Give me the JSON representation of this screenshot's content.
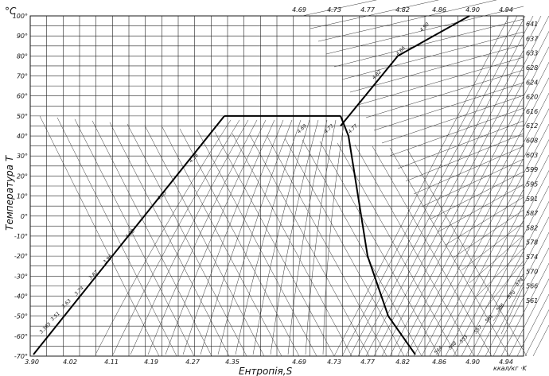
{
  "chart_data": {
    "type": "diagram",
    "xlabel": "Ентропія,S",
    "ylabel": "Температура  T",
    "yunit": "°C",
    "x_ticks_bottom": [
      "3.90",
      "4.02",
      "4.11",
      "4.19",
      "4.27",
      "4.35",
      "4.69",
      "4.73",
      "4.77",
      "4.82",
      "4.86",
      "4.90",
      "4.94"
    ],
    "x_ticks_top": [
      "4.69",
      "4.73",
      "4.77",
      "4.82",
      "4.86",
      "4.90",
      "4.94"
    ],
    "y_ticks": [
      "100°",
      "90°",
      "80°",
      "70°",
      "60°",
      "50°",
      "40°",
      "30°",
      "20°",
      "10°",
      "0°",
      "-10°",
      "-20°",
      "-30°",
      "-40°",
      "-50°",
      "-60°",
      "-70°"
    ],
    "right_ticks": [
      "641",
      "637",
      "633",
      "628",
      "624",
      "620",
      "616",
      "612",
      "608",
      "603",
      "599",
      "595",
      "591",
      "587",
      "582",
      "578",
      "574",
      "570",
      "566",
      "561"
    ],
    "bottom_right_unit": "ккал/кг  ·K",
    "curve_labels": [
      "3.365",
      "3.51",
      "3.63",
      "3.74",
      "3.87",
      "3.96",
      "4.08",
      "4.25",
      "4.36",
      "4.69",
      "4.73",
      "4.77",
      "4.82",
      "4.86",
      "4.90",
      "574",
      "570",
      "566",
      "561",
      "557",
      "553",
      "548",
      "544"
    ]
  }
}
